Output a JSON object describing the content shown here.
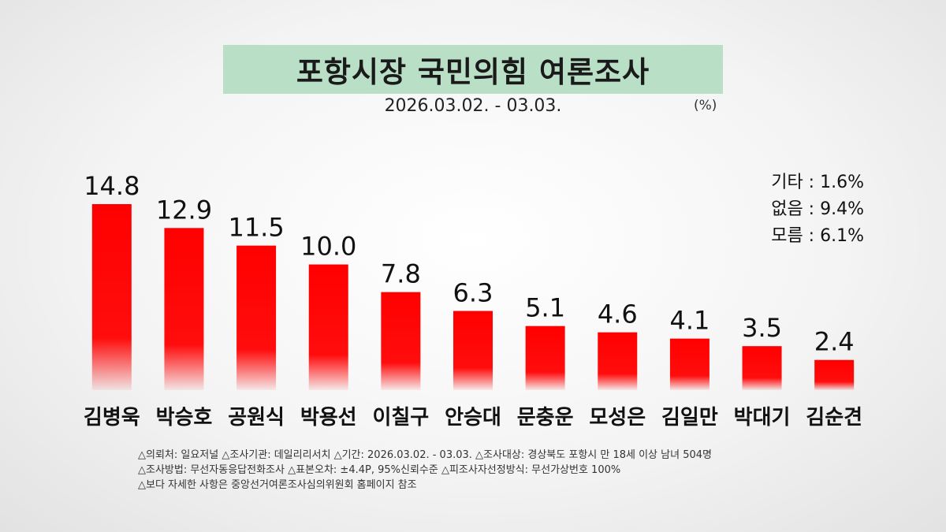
{
  "header": {
    "title": "포항시장 국민의힘 여론조사",
    "subtitle": "2026.03.02. - 03.03.",
    "unit": "(%)"
  },
  "others": [
    {
      "label": "기타",
      "value": "1.6%"
    },
    {
      "label": "없음",
      "value": "9.4%"
    },
    {
      "label": "모름",
      "value": "6.1%"
    }
  ],
  "chart_data": {
    "type": "bar",
    "title": "포항시장 국민의힘 여론조사",
    "categories": [
      "김병욱",
      "박승호",
      "공원식",
      "박용선",
      "이칠구",
      "안승대",
      "문충운",
      "모성은",
      "김일만",
      "박대기",
      "김순견"
    ],
    "values": [
      14.8,
      12.9,
      11.5,
      10.0,
      7.8,
      6.3,
      5.1,
      4.6,
      4.1,
      3.5,
      2.4
    ],
    "value_labels": [
      "14.8",
      "12.9",
      "11.5",
      "10.0",
      "7.8",
      "6.3",
      "5.1",
      "4.6",
      "4.1",
      "3.5",
      "2.4"
    ],
    "ylim": [
      0,
      20
    ],
    "grid": false,
    "legend": "none",
    "bar_color": "#ff0000",
    "xlabel": "",
    "ylabel": ""
  },
  "notes": [
    "△의뢰처: 일요저널  △조사기관: 데일리리서치 △기간: 2026.03.02. - 03.03. △조사대상: 경상북도 포항시 만 18세 이상 남녀 504명",
    "△조사방법: 무선자동응답전화조사   △표본오차: ±4.4P, 95%신뢰수준 △피조사자선정방식: 무선가상번호 100%",
    "△보다 자세한 사항은 중앙선거여론조사심의위원회 홈페이지 참조"
  ]
}
